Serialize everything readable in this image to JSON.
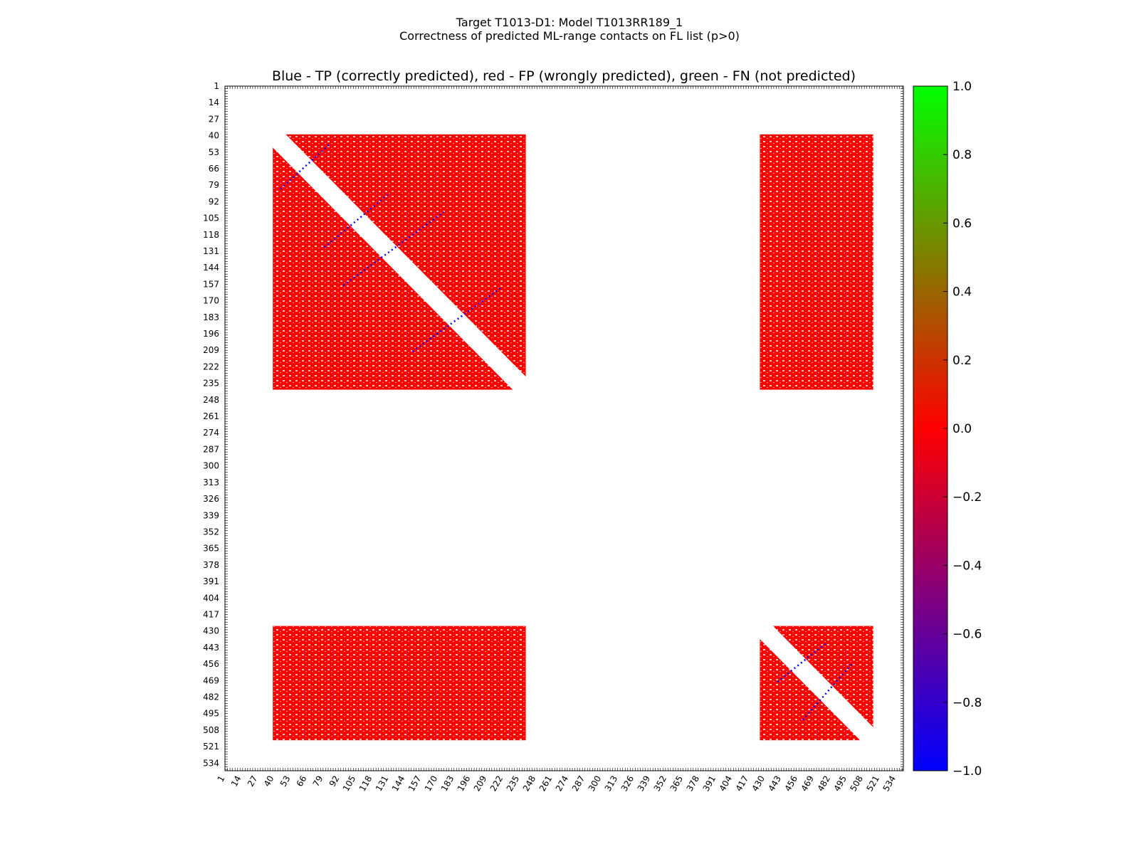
{
  "figure": {
    "title_line1": "Target T1013-D1: Model T1013RR189_1",
    "title_line2": "Correctness of predicted ML-range contacts on FL list (p>0)"
  },
  "chart_data": {
    "type": "heatmap",
    "title": "Blue - TP (correctly predicted), red - FP (wrongly predicted), green - FN (not predicted)",
    "xlabel": "",
    "ylabel": "",
    "x_range": [
      1,
      540
    ],
    "y_range": [
      1,
      540
    ],
    "ticks": [
      1,
      14,
      27,
      40,
      53,
      66,
      79,
      92,
      105,
      118,
      131,
      144,
      157,
      170,
      183,
      196,
      209,
      222,
      235,
      248,
      261,
      274,
      287,
      300,
      313,
      326,
      339,
      352,
      365,
      378,
      391,
      404,
      417,
      430,
      443,
      456,
      469,
      482,
      495,
      508,
      521,
      534
    ],
    "colorbar": {
      "ticks": [
        "1.0",
        "0.8",
        "0.6",
        "0.4",
        "0.2",
        "0.0",
        "−0.2",
        "−0.4",
        "−0.6",
        "−0.8",
        "−1.0"
      ],
      "range": [
        -1.0,
        1.0
      ],
      "colors": [
        "#0000ff",
        "#ff0000",
        "#00ff00"
      ]
    },
    "colors": {
      "TP": "#0000ff",
      "FP": "#ff0000",
      "FN": "#00ff00"
    },
    "blocks": [
      {
        "x": [
          39,
          240
        ],
        "y": [
          39,
          240
        ],
        "value": 0.0,
        "diagonal_gap": true
      },
      {
        "x": [
          426,
          516
        ],
        "y": [
          39,
          240
        ],
        "value": 0.0
      },
      {
        "x": [
          39,
          240
        ],
        "y": [
          426,
          516
        ],
        "value": 0.0
      },
      {
        "x": [
          426,
          516
        ],
        "y": [
          426,
          516
        ],
        "value": 0.0,
        "diagonal_gap": true
      }
    ],
    "tp_bands": [
      {
        "from": [
          45,
          82
        ],
        "to": [
          85,
          46
        ]
      },
      {
        "from": [
          80,
          128
        ],
        "to": [
          132,
          85
        ]
      },
      {
        "from": [
          95,
          158
        ],
        "to": [
          175,
          100
        ]
      },
      {
        "from": [
          150,
          210
        ],
        "to": [
          220,
          160
        ]
      },
      {
        "from": [
          440,
          470
        ],
        "to": [
          478,
          440
        ]
      },
      {
        "from": [
          460,
          500
        ],
        "to": [
          500,
          455
        ]
      }
    ]
  }
}
